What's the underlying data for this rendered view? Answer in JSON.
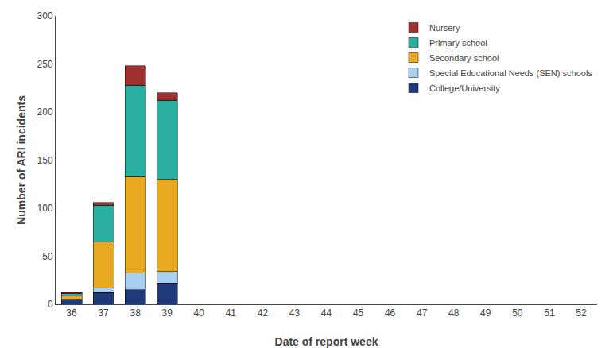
{
  "chart_data": {
    "type": "bar",
    "stacked": true,
    "x": [
      36,
      37,
      38,
      39,
      40,
      41,
      42,
      43,
      44,
      45,
      46,
      47,
      48,
      49,
      50,
      51,
      52
    ],
    "series": [
      {
        "name": "College/University",
        "color": "#1e3a7a",
        "values": [
          5,
          12,
          15,
          22,
          0,
          0,
          0,
          0,
          0,
          0,
          0,
          0,
          0,
          0,
          0,
          0,
          0
        ]
      },
      {
        "name": "Special Educational Needs (SEN) schools",
        "color": "#a8d0f0",
        "values": [
          0,
          5,
          18,
          12,
          0,
          0,
          0,
          0,
          0,
          0,
          0,
          0,
          0,
          0,
          0,
          0,
          0
        ]
      },
      {
        "name": "Secondary school",
        "color": "#e8a820",
        "values": [
          4,
          48,
          100,
          96,
          0,
          0,
          0,
          0,
          0,
          0,
          0,
          0,
          0,
          0,
          0,
          0,
          0
        ]
      },
      {
        "name": "Primary school",
        "color": "#2ab0a0",
        "values": [
          2,
          38,
          95,
          82,
          0,
          0,
          0,
          0,
          0,
          0,
          0,
          0,
          0,
          0,
          0,
          0,
          0
        ]
      },
      {
        "name": "Nursery",
        "color": "#a03030",
        "values": [
          1,
          3,
          20,
          8,
          0,
          0,
          0,
          0,
          0,
          0,
          0,
          0,
          0,
          0,
          0,
          0,
          0
        ]
      }
    ],
    "xlabel": "Date of report week",
    "ylabel": "Number of ARI incidents",
    "xlim": [
      35.5,
      52.5
    ],
    "xticks": [
      36,
      37,
      38,
      39,
      40,
      41,
      42,
      43,
      44,
      45,
      46,
      47,
      48,
      49,
      50,
      51,
      52
    ],
    "ylim": [
      0,
      300
    ],
    "yticks": [
      0,
      50,
      100,
      150,
      200,
      250,
      300
    ],
    "grid": false,
    "legend": "upper right"
  }
}
